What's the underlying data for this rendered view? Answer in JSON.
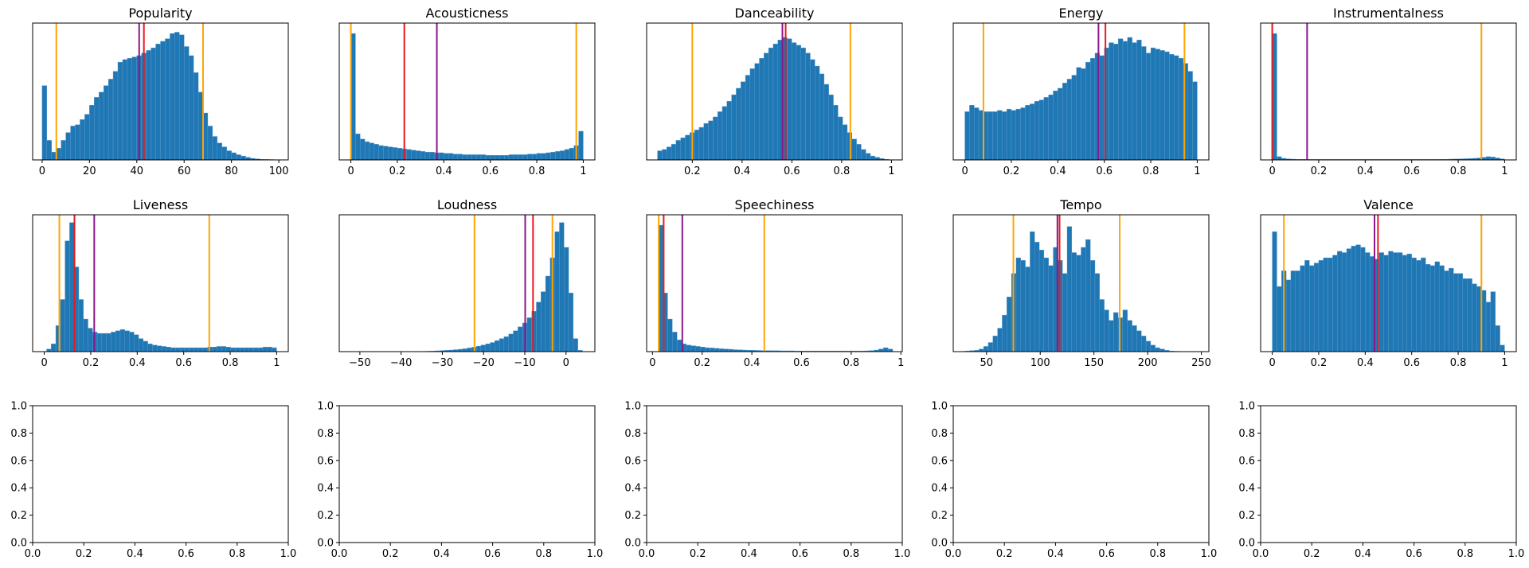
{
  "figure": {
    "bar_color": "#1f77b4",
    "bar_edge_color": "#5d9bd0",
    "line_colors": {
      "median": "#e8191f",
      "mean": "#8b168b",
      "percentile": "#ffa500"
    }
  },
  "chart_data": [
    {
      "type": "bar",
      "title": "Popularity",
      "xlim": [
        -4,
        104
      ],
      "xticks": [
        0,
        20,
        40,
        60,
        80,
        100
      ],
      "bin_range": [
        0,
        100
      ],
      "ymax": 1.0,
      "values": [
        0.57,
        0.15,
        0.06,
        0.09,
        0.15,
        0.21,
        0.26,
        0.27,
        0.31,
        0.35,
        0.42,
        0.48,
        0.52,
        0.57,
        0.62,
        0.68,
        0.75,
        0.77,
        0.78,
        0.79,
        0.8,
        0.82,
        0.84,
        0.86,
        0.89,
        0.91,
        0.93,
        0.97,
        0.98,
        0.96,
        0.87,
        0.8,
        0.67,
        0.52,
        0.36,
        0.26,
        0.18,
        0.13,
        0.1,
        0.07,
        0.055,
        0.04,
        0.03,
        0.02,
        0.012,
        0.008,
        0.005,
        0.004,
        0.003,
        0.002
      ],
      "lines": [
        {
          "kind": "percentile",
          "x": 6
        },
        {
          "kind": "mean",
          "x": 41
        },
        {
          "kind": "median",
          "x": 43
        },
        {
          "kind": "percentile",
          "x": 68
        }
      ]
    },
    {
      "type": "bar",
      "title": "Acousticness",
      "xlim": [
        -0.05,
        1.05
      ],
      "xticks": [
        0.0,
        0.2,
        0.4,
        0.6,
        0.8,
        1.0
      ],
      "bin_range": [
        0,
        1
      ],
      "ymax": 1.0,
      "values": [
        0.97,
        0.2,
        0.16,
        0.14,
        0.13,
        0.12,
        0.11,
        0.105,
        0.1,
        0.095,
        0.09,
        0.085,
        0.08,
        0.075,
        0.07,
        0.065,
        0.06,
        0.06,
        0.055,
        0.055,
        0.05,
        0.05,
        0.045,
        0.045,
        0.04,
        0.04,
        0.04,
        0.04,
        0.04,
        0.035,
        0.035,
        0.035,
        0.035,
        0.035,
        0.04,
        0.04,
        0.04,
        0.04,
        0.045,
        0.045,
        0.05,
        0.05,
        0.055,
        0.06,
        0.065,
        0.07,
        0.08,
        0.09,
        0.11,
        0.22
      ],
      "lines": [
        {
          "kind": "percentile",
          "x": 0.0
        },
        {
          "kind": "median",
          "x": 0.23
        },
        {
          "kind": "mean",
          "x": 0.37
        },
        {
          "kind": "percentile",
          "x": 0.97
        }
      ]
    },
    {
      "type": "bar",
      "title": "Danceability",
      "xlim": [
        0.0165,
        1.0435
      ],
      "xticks": [
        0.2,
        0.4,
        0.6,
        0.8,
        1.0
      ],
      "bin_range": [
        0.06,
        0.99
      ],
      "ymax": 1.0,
      "values": [
        0.07,
        0.08,
        0.1,
        0.12,
        0.15,
        0.17,
        0.19,
        0.21,
        0.23,
        0.25,
        0.28,
        0.3,
        0.33,
        0.37,
        0.41,
        0.45,
        0.5,
        0.55,
        0.6,
        0.65,
        0.7,
        0.74,
        0.78,
        0.82,
        0.86,
        0.89,
        0.92,
        0.94,
        0.93,
        0.9,
        0.88,
        0.86,
        0.82,
        0.77,
        0.72,
        0.66,
        0.58,
        0.5,
        0.42,
        0.33,
        0.27,
        0.21,
        0.16,
        0.12,
        0.08,
        0.05,
        0.03,
        0.02,
        0.01,
        0.005
      ],
      "lines": [
        {
          "kind": "percentile",
          "x": 0.2
        },
        {
          "kind": "mean",
          "x": 0.562
        },
        {
          "kind": "median",
          "x": 0.575
        },
        {
          "kind": "percentile",
          "x": 0.835
        }
      ]
    },
    {
      "type": "bar",
      "title": "Energy",
      "xlim": [
        -0.05,
        1.05
      ],
      "xticks": [
        0.0,
        0.2,
        0.4,
        0.6,
        0.8,
        1.0
      ],
      "bin_range": [
        0,
        1
      ],
      "ymax": 1.0,
      "values": [
        0.37,
        0.42,
        0.4,
        0.38,
        0.37,
        0.37,
        0.37,
        0.38,
        0.37,
        0.39,
        0.38,
        0.39,
        0.4,
        0.42,
        0.43,
        0.45,
        0.46,
        0.48,
        0.5,
        0.53,
        0.55,
        0.59,
        0.62,
        0.65,
        0.71,
        0.7,
        0.75,
        0.78,
        0.82,
        0.8,
        0.86,
        0.9,
        0.89,
        0.93,
        0.91,
        0.94,
        0.9,
        0.92,
        0.87,
        0.82,
        0.86,
        0.85,
        0.84,
        0.83,
        0.81,
        0.8,
        0.78,
        0.74,
        0.68,
        0.6
      ],
      "lines": [
        {
          "kind": "percentile",
          "x": 0.08
        },
        {
          "kind": "mean",
          "x": 0.575
        },
        {
          "kind": "median",
          "x": 0.605
        },
        {
          "kind": "percentile",
          "x": 0.945
        }
      ]
    },
    {
      "type": "bar",
      "title": "Instrumentalness",
      "xlim": [
        -0.05,
        1.05
      ],
      "xticks": [
        0.0,
        0.2,
        0.4,
        0.6,
        0.8,
        1.0
      ],
      "bin_range": [
        0,
        1
      ],
      "ymax": 1.0,
      "values": [
        0.97,
        0.025,
        0.012,
        0.008,
        0.006,
        0.005,
        0.005,
        0.004,
        0.004,
        0.004,
        0.004,
        0.004,
        0.004,
        0.004,
        0.004,
        0.004,
        0.004,
        0.004,
        0.004,
        0.004,
        0.004,
        0.004,
        0.004,
        0.004,
        0.004,
        0.004,
        0.004,
        0.004,
        0.004,
        0.004,
        0.004,
        0.004,
        0.004,
        0.004,
        0.004,
        0.004,
        0.005,
        0.005,
        0.006,
        0.007,
        0.008,
        0.009,
        0.01,
        0.012,
        0.015,
        0.02,
        0.025,
        0.022,
        0.015,
        0.008
      ],
      "lines": [
        {
          "kind": "percentile",
          "x": 0.0
        },
        {
          "kind": "median",
          "x": 0.0
        },
        {
          "kind": "mean",
          "x": 0.15
        },
        {
          "kind": "percentile",
          "x": 0.9
        }
      ]
    },
    {
      "type": "bar",
      "title": "Liveness",
      "xlim": [
        -0.05,
        1.05
      ],
      "xticks": [
        0.0,
        0.2,
        0.4,
        0.6,
        0.8,
        1.0
      ],
      "bin_range": [
        0.01,
        1.0
      ],
      "ymax": 1.0,
      "values": [
        0.02,
        0.06,
        0.2,
        0.4,
        0.85,
        0.99,
        0.65,
        0.4,
        0.25,
        0.18,
        0.15,
        0.14,
        0.14,
        0.14,
        0.15,
        0.16,
        0.17,
        0.16,
        0.15,
        0.13,
        0.1,
        0.08,
        0.06,
        0.05,
        0.045,
        0.04,
        0.035,
        0.03,
        0.03,
        0.03,
        0.03,
        0.03,
        0.03,
        0.03,
        0.03,
        0.035,
        0.035,
        0.04,
        0.04,
        0.035,
        0.03,
        0.03,
        0.03,
        0.03,
        0.03,
        0.03,
        0.03,
        0.035,
        0.035,
        0.03
      ],
      "lines": [
        {
          "kind": "percentile",
          "x": 0.065
        },
        {
          "kind": "median",
          "x": 0.13
        },
        {
          "kind": "mean",
          "x": 0.215
        },
        {
          "kind": "percentile",
          "x": 0.71
        }
      ]
    },
    {
      "type": "bar",
      "title": "Loudness",
      "xlim": [
        -55,
        7
      ],
      "xticks": [
        -50,
        -40,
        -30,
        -20,
        -10,
        0
      ],
      "bin_range": [
        -52,
        4
      ],
      "ymax": 1.0,
      "values": [
        0,
        0,
        0,
        0,
        0,
        0,
        0,
        0,
        0,
        0,
        0,
        0,
        0,
        0,
        0,
        0.002,
        0.003,
        0.004,
        0.006,
        0.008,
        0.01,
        0.012,
        0.015,
        0.018,
        0.022,
        0.028,
        0.034,
        0.042,
        0.05,
        0.06,
        0.07,
        0.085,
        0.1,
        0.115,
        0.135,
        0.16,
        0.19,
        0.22,
        0.26,
        0.31,
        0.38,
        0.46,
        0.58,
        0.72,
        0.92,
        0.99,
        0.8,
        0.45,
        0.1,
        0.01
      ],
      "lines": [
        {
          "kind": "percentile",
          "x": -22.2
        },
        {
          "kind": "mean",
          "x": -9.9
        },
        {
          "kind": "median",
          "x": -8.0
        },
        {
          "kind": "percentile",
          "x": -3.3
        }
      ]
    },
    {
      "type": "bar",
      "title": "Speechiness",
      "xlim": [
        -0.0236,
        1.0056
      ],
      "xticks": [
        0.0,
        0.2,
        0.4,
        0.6,
        0.8,
        1.0
      ],
      "bin_range": [
        0.0232,
        0.9672
      ],
      "ymax": 1.0,
      "values": [
        0.97,
        0.45,
        0.25,
        0.15,
        0.09,
        0.06,
        0.05,
        0.045,
        0.04,
        0.035,
        0.03,
        0.028,
        0.025,
        0.022,
        0.02,
        0.018,
        0.015,
        0.014,
        0.012,
        0.011,
        0.01,
        0.009,
        0.008,
        0.008,
        0.007,
        0.007,
        0.006,
        0.006,
        0.006,
        0.005,
        0.005,
        0.005,
        0.005,
        0.005,
        0.005,
        0.005,
        0.005,
        0.005,
        0.005,
        0.005,
        0.005,
        0.005,
        0.005,
        0.005,
        0.006,
        0.008,
        0.012,
        0.02,
        0.03,
        0.02
      ],
      "lines": [
        {
          "kind": "percentile",
          "x": 0.025
        },
        {
          "kind": "median",
          "x": 0.045
        },
        {
          "kind": "mean",
          "x": 0.12
        },
        {
          "kind": "percentile",
          "x": 0.45
        }
      ]
    },
    {
      "type": "bar",
      "title": "Tempo",
      "xlim": [
        19,
        257
      ],
      "xticks": [
        50,
        100,
        150,
        200,
        250
      ],
      "bin_range": [
        30,
        246
      ],
      "ymax": 1.0,
      "values": [
        0.005,
        0.008,
        0.01,
        0.02,
        0.04,
        0.07,
        0.12,
        0.18,
        0.28,
        0.42,
        0.6,
        0.72,
        0.7,
        0.65,
        0.92,
        0.84,
        0.78,
        0.72,
        0.66,
        0.8,
        0.7,
        0.6,
        0.96,
        0.76,
        0.74,
        0.8,
        0.86,
        0.7,
        0.6,
        0.4,
        0.32,
        0.24,
        0.3,
        0.26,
        0.32,
        0.24,
        0.2,
        0.16,
        0.12,
        0.08,
        0.05,
        0.03,
        0.02,
        0.01,
        0.005,
        0.003,
        0.002,
        0.001,
        0,
        0
      ],
      "lines": [
        {
          "kind": "percentile",
          "x": 75
        },
        {
          "kind": "mean",
          "x": 116
        },
        {
          "kind": "median",
          "x": 118
        },
        {
          "kind": "percentile",
          "x": 174
        }
      ]
    },
    {
      "type": "bar",
      "title": "Valence",
      "xlim": [
        -0.05,
        1.05
      ],
      "xticks": [
        0.0,
        0.2,
        0.4,
        0.6,
        0.8,
        1.0
      ],
      "bin_range": [
        0,
        1
      ],
      "ymax": 1.0,
      "values": [
        0.92,
        0.5,
        0.62,
        0.55,
        0.62,
        0.62,
        0.66,
        0.7,
        0.66,
        0.68,
        0.7,
        0.72,
        0.72,
        0.74,
        0.77,
        0.76,
        0.79,
        0.81,
        0.82,
        0.8,
        0.76,
        0.73,
        0.71,
        0.76,
        0.74,
        0.77,
        0.76,
        0.76,
        0.74,
        0.75,
        0.72,
        0.7,
        0.72,
        0.67,
        0.66,
        0.69,
        0.66,
        0.62,
        0.64,
        0.6,
        0.6,
        0.56,
        0.56,
        0.52,
        0.5,
        0.47,
        0.38,
        0.46,
        0.2,
        0.05
      ],
      "lines": [
        {
          "kind": "percentile",
          "x": 0.05
        },
        {
          "kind": "mean",
          "x": 0.44
        },
        {
          "kind": "median",
          "x": 0.455
        },
        {
          "kind": "percentile",
          "x": 0.9
        }
      ]
    },
    {
      "type": "empty",
      "xlim": [
        0,
        1
      ],
      "ylim": [
        0,
        1
      ],
      "xticks": [
        "0.0",
        "0.2",
        "0.4",
        "0.6",
        "0.8",
        "1.0"
      ],
      "yticks": [
        "0.0",
        "0.2",
        "0.4",
        "0.6",
        "0.8",
        "1.0"
      ]
    },
    {
      "type": "empty",
      "xlim": [
        0,
        1
      ],
      "ylim": [
        0,
        1
      ],
      "xticks": [
        "0.0",
        "0.2",
        "0.4",
        "0.6",
        "0.8",
        "1.0"
      ],
      "yticks": [
        "0.0",
        "0.2",
        "0.4",
        "0.6",
        "0.8",
        "1.0"
      ]
    },
    {
      "type": "empty",
      "xlim": [
        0,
        1
      ],
      "ylim": [
        0,
        1
      ],
      "xticks": [
        "0.0",
        "0.2",
        "0.4",
        "0.6",
        "0.8",
        "1.0"
      ],
      "yticks": [
        "0.0",
        "0.2",
        "0.4",
        "0.6",
        "0.8",
        "1.0"
      ]
    },
    {
      "type": "empty",
      "xlim": [
        0,
        1
      ],
      "ylim": [
        0,
        1
      ],
      "xticks": [
        "0.0",
        "0.2",
        "0.4",
        "0.6",
        "0.8",
        "1.0"
      ],
      "yticks": [
        "0.0",
        "0.2",
        "0.4",
        "0.6",
        "0.8",
        "1.0"
      ]
    },
    {
      "type": "empty",
      "xlim": [
        0,
        1
      ],
      "ylim": [
        0,
        1
      ],
      "xticks": [
        "0.0",
        "0.2",
        "0.4",
        "0.6",
        "0.8",
        "1.0"
      ],
      "yticks": [
        "0.0",
        "0.2",
        "0.4",
        "0.6",
        "0.8",
        "1.0"
      ]
    }
  ]
}
